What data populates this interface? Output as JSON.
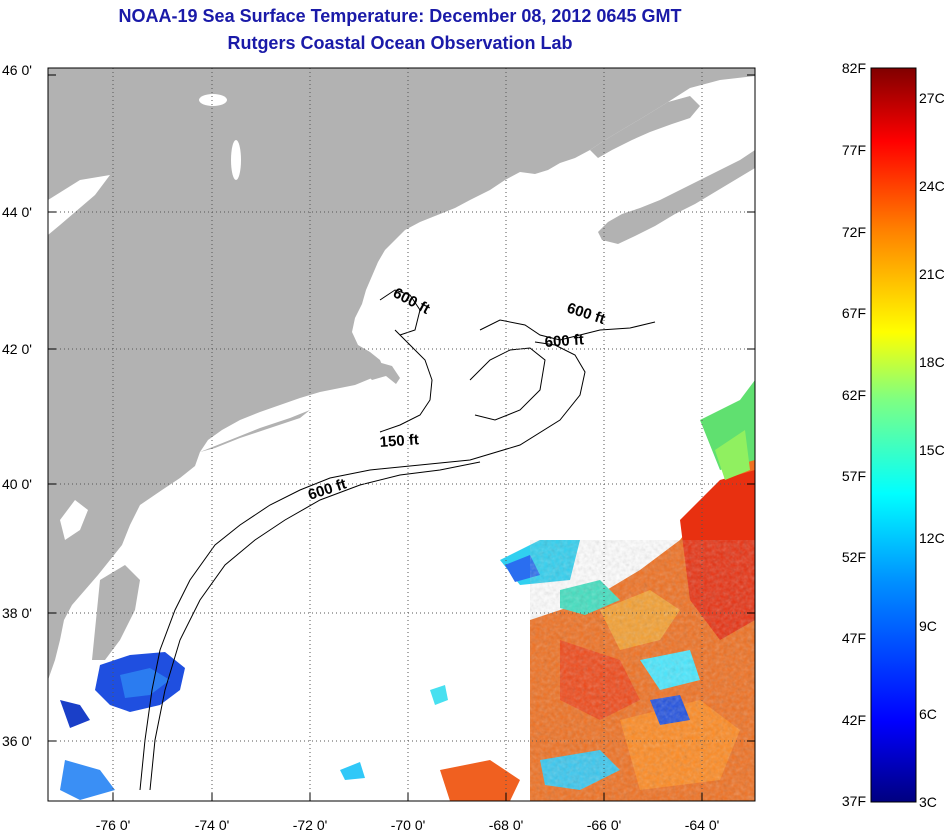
{
  "title": {
    "line1": "NOAA-19 Sea Surface Temperature:  December 08, 2012 0645 GMT",
    "line2": "Rutgers Coastal Ocean Observation Lab"
  },
  "map": {
    "lat_ticks": [
      {
        "lat": 46,
        "label": "46 0'"
      },
      {
        "lat": 44,
        "label": "44 0'"
      },
      {
        "lat": 42,
        "label": "42 0'"
      },
      {
        "lat": 40,
        "label": "40 0'"
      },
      {
        "lat": 38,
        "label": "38 0'"
      },
      {
        "lat": 36,
        "label": "36 0'"
      }
    ],
    "lon_ticks": [
      {
        "lon": -76,
        "label": "-76 0'"
      },
      {
        "lon": -74,
        "label": "-74 0'"
      },
      {
        "lon": -72,
        "label": "-72 0'"
      },
      {
        "lon": -70,
        "label": "-70 0'"
      },
      {
        "lon": -68,
        "label": "-68 0'"
      },
      {
        "lon": -66,
        "label": "-66 0'"
      },
      {
        "lon": -64,
        "label": "-64 0'"
      }
    ],
    "lat_range": [
      35,
      46
    ],
    "lon_range": [
      -77,
      -63
    ],
    "contour_labels": [
      "600 ft",
      "600 ft",
      "600 ft",
      "150 ft",
      "600 ft"
    ],
    "land_color": "#b2b2b2"
  },
  "colorbar": {
    "fahrenheit": [
      "82F",
      "77F",
      "72F",
      "67F",
      "62F",
      "57F",
      "52F",
      "47F",
      "42F",
      "37F"
    ],
    "celsius": [
      "27C",
      "24C",
      "21C",
      "18C",
      "15C",
      "12C",
      "9C",
      "6C",
      "3C"
    ],
    "colors": [
      "#000080",
      "#0000ff",
      "#0080ff",
      "#00ffff",
      "#80ff80",
      "#ffff00",
      "#ff8000",
      "#ff0000",
      "#800000"
    ]
  }
}
